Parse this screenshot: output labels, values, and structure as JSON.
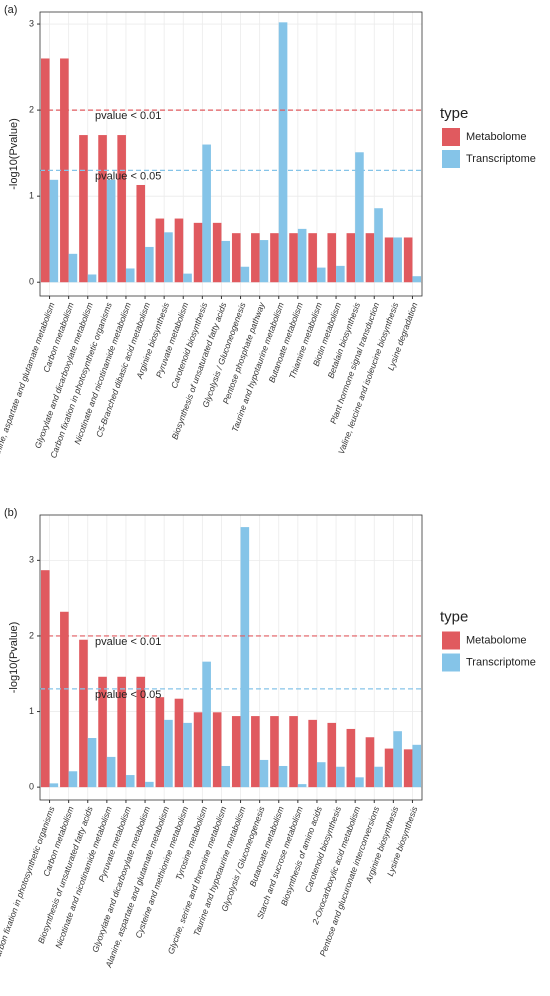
{
  "chart_data": [
    {
      "type": "bar",
      "panel_label": "(a)",
      "ylabel": "-log10(Pvalue)",
      "legend_title": "type",
      "categories": [
        "Alanine, aspartate and glutamate metabolism",
        "Carbon metabolism",
        "Glyoxylate and dicarboxylate metabolism",
        "Carbon fixation in photosynthetic organisms",
        "Nicotinate and nicotinamide metabolism",
        "C5-Branched dibasic acid metabolism",
        "Arginine biosynthesis",
        "Pyruvate metabolism",
        "Carotenoid biosynthesis",
        "Biosynthesis of unsaturated fatty acids",
        "Glycolysis / Gluconeogenesis",
        "Pentose phosphate pathway",
        "Taurine and hypotaurine metabolism",
        "Butanoate metabolism",
        "Thiamine metabolism",
        "Biotin metabolism",
        "Betalain biosynthesis",
        "Plant hormone signal transduction",
        "Valine, leucine and isoleucine biosynthesis",
        "Lysine degradation"
      ],
      "series": [
        {
          "name": "Metabolome",
          "color": "#e05a5f",
          "values": [
            2.6,
            2.6,
            1.71,
            1.71,
            1.71,
            1.13,
            0.74,
            0.74,
            0.69,
            0.69,
            0.57,
            0.57,
            0.57,
            0.57,
            0.57,
            0.57,
            0.57,
            0.57,
            0.52,
            0.52
          ]
        },
        {
          "name": "Transcriptome",
          "color": "#85c4e8",
          "values": [
            1.19,
            0.33,
            0.09,
            1.19,
            0.16,
            0.41,
            0.58,
            0.1,
            1.6,
            0.48,
            0.18,
            0.49,
            3.02,
            0.62,
            0.17,
            0.19,
            1.51,
            0.86,
            0.52,
            0.07
          ]
        }
      ],
      "hlines": [
        {
          "value": 2,
          "label": "pvalue < 0.01",
          "color": "#e05a5f"
        },
        {
          "value": 1.3,
          "label": "pvalue < 0.05",
          "color": "#85c4e8"
        }
      ],
      "ylim": [
        -0.16,
        3.14
      ],
      "yticks": [
        0,
        1,
        2,
        3
      ],
      "grid": true
    },
    {
      "type": "bar",
      "panel_label": "(b)",
      "ylabel": "-log10(Pvalue)",
      "legend_title": "type",
      "categories": [
        "Carbon fixation in photosynthetic organisms",
        "Carbon metabolism",
        "Biosynthesis of unsaturated fatty acids",
        "Nicotinate and nicotinamide metabolism",
        "Pyruvate metabolism",
        "Glyoxylate and dicarboxylate metabolism",
        "Alanine, aspartate and glutamate metabolism",
        "Cysteine and methionine metabolism",
        "Tyrosine metabolism",
        "Glycine, serine and threonine metabolism",
        "Taurine and hypotaurine metabolism",
        "Glycolysis / Gluconeogenesis",
        "Butanoate metabolism",
        "Starch and sucrose metabolism",
        "Biosynthesis of amino acids",
        "Carotenoid biosynthesis",
        "2-Oxocarboxylic acid metabolism",
        "Pentose and glucuronate interconversions",
        "Arginine biosynthesis",
        "Lysine biosynthesis"
      ],
      "series": [
        {
          "name": "Metabolome",
          "color": "#e05a5f",
          "values": [
            2.87,
            2.32,
            1.95,
            1.46,
            1.46,
            1.46,
            1.19,
            1.17,
            0.99,
            0.99,
            0.94,
            0.94,
            0.94,
            0.94,
            0.89,
            0.85,
            0.77,
            0.66,
            0.51,
            0.5
          ]
        },
        {
          "name": "Transcriptome",
          "color": "#85c4e8",
          "values": [
            0.05,
            0.21,
            0.65,
            0.4,
            0.16,
            0.07,
            0.89,
            0.85,
            1.66,
            0.28,
            3.44,
            0.36,
            0.28,
            0.04,
            0.33,
            0.27,
            0.13,
            0.27,
            0.74,
            0.56
          ]
        }
      ],
      "hlines": [
        {
          "value": 2,
          "label": "pvalue < 0.01",
          "color": "#e05a5f"
        },
        {
          "value": 1.3,
          "label": "pvalue < 0.05",
          "color": "#85c4e8"
        }
      ],
      "ylim": [
        -0.17,
        3.6
      ],
      "yticks": [
        0,
        1,
        2,
        3
      ],
      "grid": true
    }
  ]
}
